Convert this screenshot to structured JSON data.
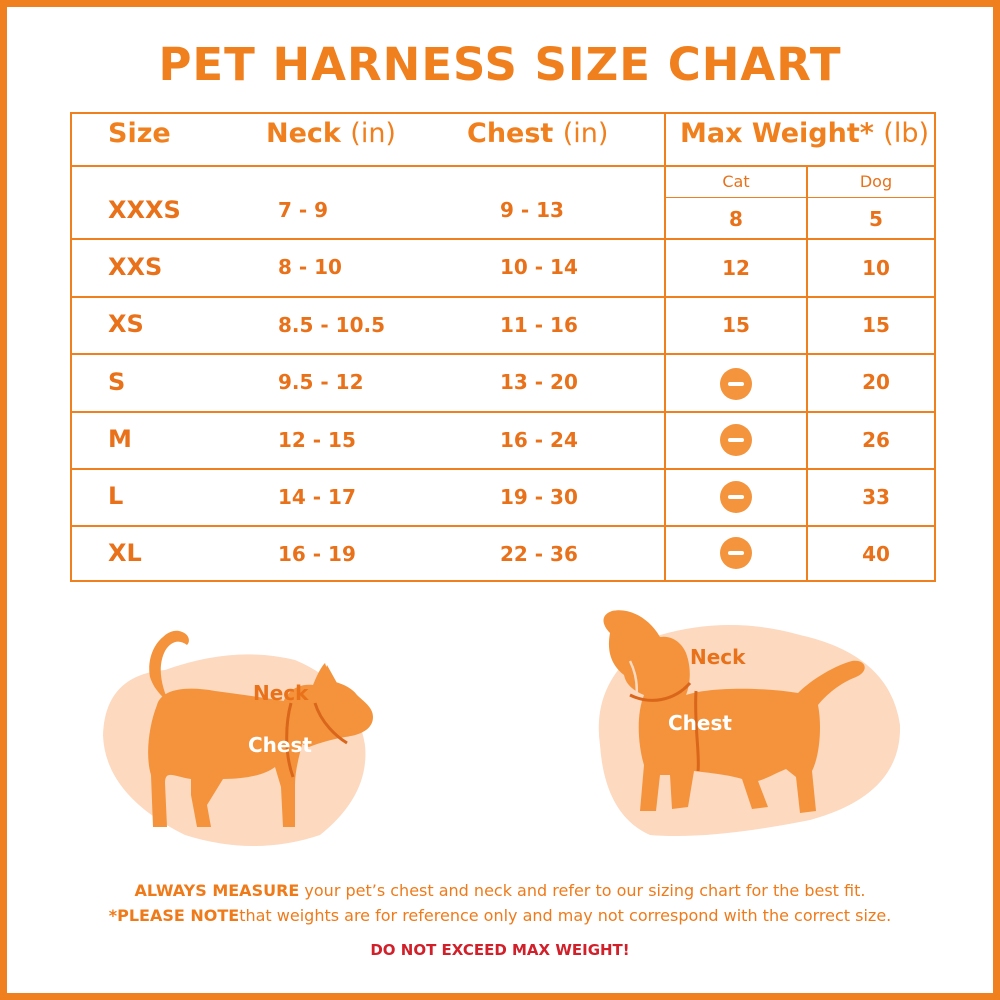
{
  "title": "PET HARNESS SIZE CHART",
  "headers": {
    "size": "Size",
    "neck_label": "Neck",
    "neck_unit": "(in)",
    "chest_label": "Chest",
    "chest_unit": "(in)",
    "weight_label": "Max Weight*",
    "weight_unit": "(lb)",
    "cat": "Cat",
    "dog": "Dog"
  },
  "rows": [
    {
      "size": "XXXS",
      "neck": "7 - 9",
      "chest": "9 - 13",
      "cat": "8",
      "dog": "5"
    },
    {
      "size": "XXS",
      "neck": "8 - 10",
      "chest": "10 - 14",
      "cat": "12",
      "dog": "10"
    },
    {
      "size": "XS",
      "neck": "8.5 - 10.5",
      "chest": "11  - 16",
      "cat": "15",
      "dog": "15"
    },
    {
      "size": "S",
      "neck": "9.5 - 12",
      "chest": "13 - 20",
      "cat": null,
      "dog": "20"
    },
    {
      "size": "M",
      "neck": "12 - 15",
      "chest": "16 - 24",
      "cat": null,
      "dog": "26"
    },
    {
      "size": "L",
      "neck": "14 - 17",
      "chest": "19 - 30",
      "cat": null,
      "dog": "33"
    },
    {
      "size": "XL",
      "neck": "16 - 19",
      "chest": "22 - 36",
      "cat": null,
      "dog": "40"
    }
  ],
  "unavailable_icon": "minus-circle-icon",
  "illustrations": {
    "cat": {
      "neck": "Neck",
      "chest": "Chest"
    },
    "dog": {
      "neck": "Neck",
      "chest": "Chest"
    }
  },
  "notes": {
    "line1_bold": "ALWAYS MEASURE",
    "line1_rest": " your pet’s chest and neck and refer to our sizing chart for the best fit.",
    "line2_bold": "*PLEASE NOTE",
    "line2_rest": "that weights are for reference only and may not correspond with the correct size.",
    "warning": "DO NOT EXCEED MAX WEIGHT!"
  },
  "colors": {
    "accent": "#f07f1e",
    "soft": "#fcd9bf",
    "warning": "#d1202a"
  }
}
